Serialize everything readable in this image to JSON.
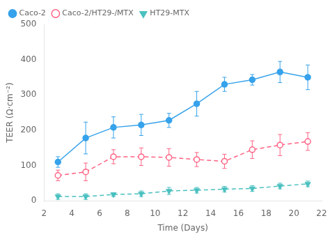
{
  "chart_data": {
    "type": "line",
    "xlabel": "Time (Days)",
    "ylabel": "TEER (Ω·cm⁻²)",
    "xlim": [
      2,
      22
    ],
    "xticks": [
      2,
      4,
      6,
      8,
      10,
      12,
      14,
      16,
      18,
      20,
      22
    ],
    "ylim": [
      0,
      500
    ],
    "yticks": [
      0,
      100,
      200,
      300,
      400,
      500
    ],
    "grid": false,
    "legend": "upper left",
    "series": [
      {
        "name": "Caco-2",
        "marker": "circle",
        "line_style": "solid",
        "x": [
          3,
          5,
          7,
          9,
          11,
          13,
          15,
          17,
          19,
          21
        ],
        "values": [
          110,
          178,
          208,
          215,
          228,
          275,
          330,
          343,
          365,
          350
        ],
        "errors": [
          15,
          45,
          30,
          30,
          20,
          35,
          20,
          15,
          30,
          35
        ]
      },
      {
        "name": "Caco-2/HT29-/MTX",
        "marker": "open_circle",
        "line_style": "dashed",
        "x": [
          3,
          5,
          7,
          9,
          11,
          13,
          15,
          17,
          19,
          21
        ],
        "values": [
          72,
          82,
          125,
          125,
          123,
          117,
          112,
          145,
          158,
          168
        ],
        "errors": [
          15,
          25,
          20,
          25,
          25,
          20,
          20,
          25,
          30,
          25
        ]
      },
      {
        "name": "HT29-MTX",
        "marker": "triangle_down",
        "line_style": "dashed",
        "x": [
          3,
          5,
          7,
          9,
          11,
          13,
          15,
          17,
          19,
          21
        ],
        "values": [
          12,
          12,
          18,
          20,
          28,
          30,
          33,
          35,
          42,
          48
        ],
        "errors": [
          8,
          8,
          5,
          8,
          10,
          8,
          8,
          8,
          8,
          8
        ]
      }
    ]
  }
}
